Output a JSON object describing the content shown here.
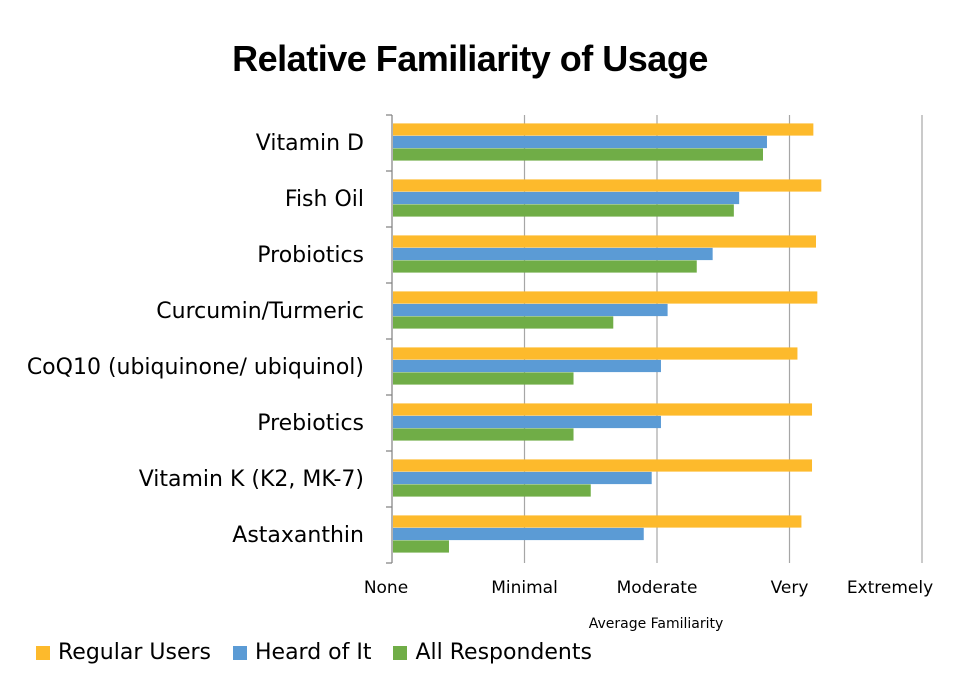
{
  "colors": {
    "regular_users": "#FDBA2C",
    "heard_of_it": "#5B9BD5",
    "all_respondents": "#70AD47",
    "gridline": "#A6A6A6",
    "axis": "#7F7F7F"
  },
  "chart_data": {
    "type": "bar",
    "orientation": "horizontal",
    "title": "Relative Familiarity of Usage",
    "xlabel": "Average Familiarity",
    "ylabel": "",
    "xlim": [
      0,
      4
    ],
    "x_tick_labels": [
      "None",
      "Minimal",
      "Moderate",
      "Very",
      "Extremely"
    ],
    "grid": true,
    "legend_position": "bottom",
    "categories": [
      "Vitamin D",
      "Fish Oil",
      "Probiotics",
      "Curcumin/Turmeric",
      "CoQ10 (ubiquinone/ ubiquinol)",
      "Prebiotics",
      "Vitamin K (K2, MK-7)",
      "Astaxanthin"
    ],
    "series": [
      {
        "name": "Regular Users",
        "values": [
          3.18,
          3.24,
          3.2,
          3.21,
          3.06,
          3.17,
          3.17,
          3.09
        ]
      },
      {
        "name": "Heard of It",
        "values": [
          2.83,
          2.62,
          2.42,
          2.08,
          2.03,
          2.03,
          1.96,
          1.9
        ]
      },
      {
        "name": "All Respondents",
        "values": [
          2.8,
          2.58,
          2.3,
          1.67,
          1.37,
          1.37,
          1.5,
          0.43
        ]
      }
    ]
  }
}
